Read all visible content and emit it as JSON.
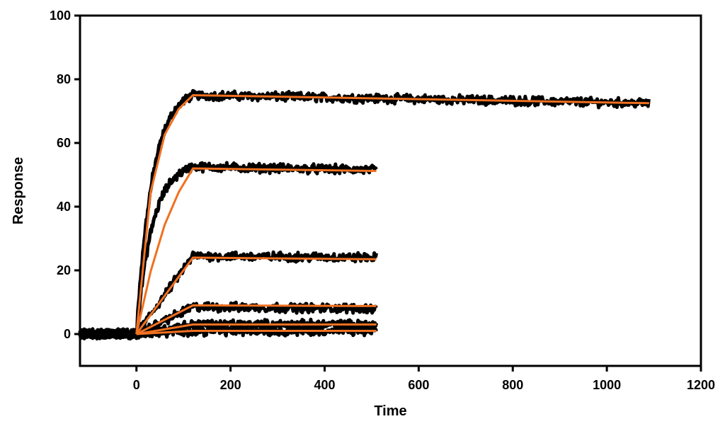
{
  "chart_data": {
    "type": "line",
    "title": "",
    "xlabel": "Time",
    "ylabel": "Response",
    "xlim": [
      -120,
      1200
    ],
    "ylim": [
      -10,
      100
    ],
    "x_ticks": [
      0,
      200,
      400,
      600,
      800,
      1000,
      1200
    ],
    "y_ticks": [
      0,
      20,
      40,
      60,
      80,
      100
    ],
    "x_tick_labels": [
      "0",
      "200",
      "400",
      "600",
      "800",
      "1000",
      "1200"
    ],
    "y_tick_labels": [
      "0",
      "20",
      "40",
      "60",
      "80",
      "100"
    ],
    "grid": false,
    "legend": "none",
    "colors": {
      "data": "#000000",
      "fit": "#f07020",
      "axis": "#000000"
    },
    "association_end": 120,
    "series": [
      {
        "data": {
          "x_start": -120,
          "x_end": 1090,
          "baseline": 0,
          "plateau": 75,
          "end_value": 72.5,
          "shape": "exponential"
        },
        "fit": [
          [
            0,
            0
          ],
          [
            30,
            44.5
          ],
          [
            60,
            62.6
          ],
          [
            90,
            70.7
          ],
          [
            120,
            75
          ],
          [
            1090,
            72.5
          ]
        ]
      },
      {
        "data": {
          "x_start": -120,
          "x_end": 510,
          "baseline": 0,
          "plateau": 52.5,
          "end_value": 51.5,
          "shape": "exponential"
        },
        "fit": [
          [
            0,
            0
          ],
          [
            30,
            19.6
          ],
          [
            60,
            34.3
          ],
          [
            90,
            44.6
          ],
          [
            120,
            52
          ],
          [
            510,
            51.2
          ]
        ]
      },
      {
        "data": {
          "x_start": -120,
          "x_end": 510,
          "baseline": 0,
          "plateau": 24.5,
          "end_value": 24,
          "shape": "linear"
        },
        "fit": [
          [
            0,
            0
          ],
          [
            120,
            24
          ],
          [
            510,
            23.5
          ]
        ]
      },
      {
        "data": {
          "x_start": -120,
          "x_end": 510,
          "baseline": 0,
          "plateau": 8.5,
          "end_value": 8,
          "shape": "linear"
        },
        "fit": [
          [
            0,
            0
          ],
          [
            120,
            9
          ],
          [
            510,
            8.8
          ]
        ]
      },
      {
        "data": {
          "x_start": -120,
          "x_end": 510,
          "baseline": 0,
          "plateau": 3,
          "end_value": 3,
          "shape": "linear"
        },
        "fit": [
          [
            0,
            0
          ],
          [
            120,
            3
          ],
          [
            510,
            3
          ]
        ]
      },
      {
        "data": {
          "x_start": -120,
          "x_end": 510,
          "baseline": 0,
          "plateau": 1,
          "end_value": 1,
          "shape": "linear"
        },
        "fit": [
          [
            0,
            0
          ],
          [
            120,
            1
          ],
          [
            510,
            1
          ]
        ]
      }
    ]
  }
}
